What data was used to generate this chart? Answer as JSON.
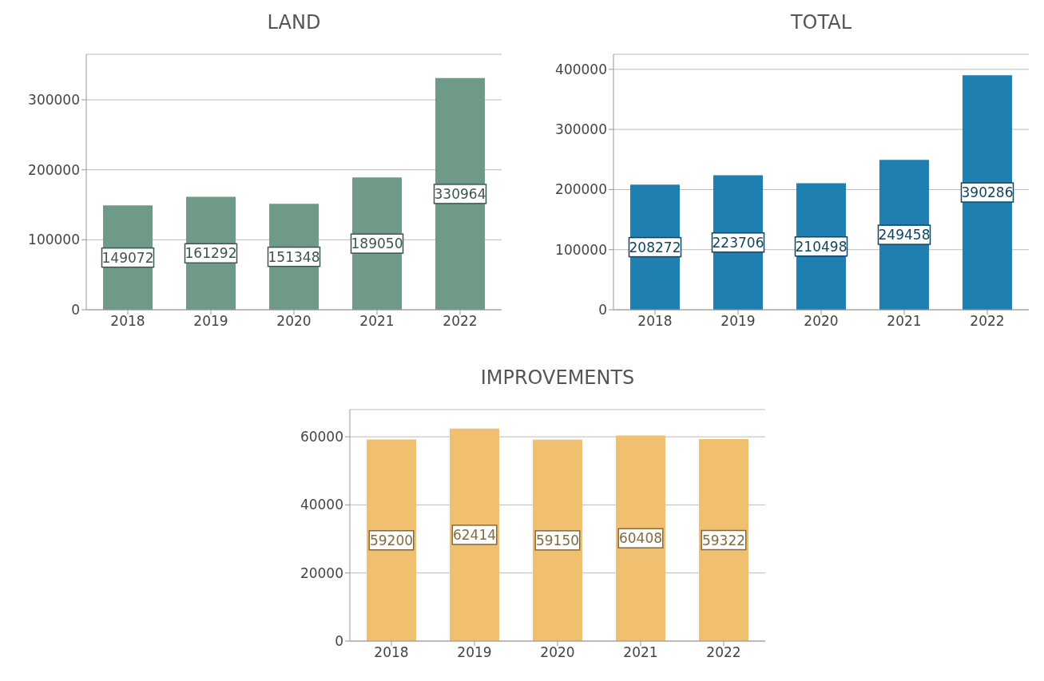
{
  "chart_data": [
    {
      "type": "bar",
      "title": "LAND",
      "categories": [
        "2018",
        "2019",
        "2020",
        "2021",
        "2022"
      ],
      "values": [
        149072,
        161292,
        151348,
        189050,
        330964
      ],
      "color": "#6f9a88",
      "ylim": [
        0,
        365000
      ],
      "yticks": [
        0,
        100000,
        200000,
        300000
      ],
      "grid": "y",
      "data_labels": true
    },
    {
      "type": "bar",
      "title": "TOTAL",
      "categories": [
        "2018",
        "2019",
        "2020",
        "2021",
        "2022"
      ],
      "values": [
        208272,
        223706,
        210498,
        249458,
        390286
      ],
      "color": "#1f7fb0",
      "ylim": [
        0,
        425000
      ],
      "yticks": [
        0,
        100000,
        200000,
        300000,
        400000
      ],
      "grid": "y",
      "data_labels": true
    },
    {
      "type": "bar",
      "title": "IMPROVEMENTS",
      "categories": [
        "2018",
        "2019",
        "2020",
        "2021",
        "2022"
      ],
      "values": [
        59200,
        62414,
        59150,
        60408,
        59322
      ],
      "color": "#f0c070",
      "ylim": [
        0,
        68000
      ],
      "yticks": [
        0,
        20000,
        40000,
        60000
      ],
      "grid": "y",
      "data_labels": true
    }
  ]
}
